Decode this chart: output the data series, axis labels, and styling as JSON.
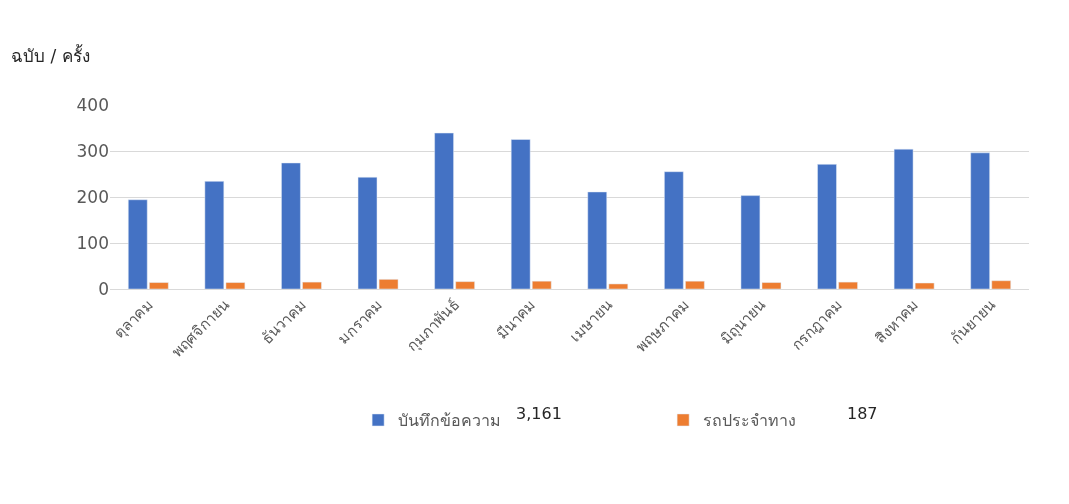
{
  "chart_data": {
    "type": "bar",
    "ylabel": "ฉบับ / ครั้ง",
    "categories": [
      "ตุลาคม",
      "พฤศจิกายน",
      "ธันวาคม",
      "มกราคม",
      "กุมภาพันธ์",
      "มีนาคม",
      "เมษายน",
      "พฤษภาคม",
      "มิถุนายน",
      "กรกฎาคม",
      "สิงหาคม",
      "กันยายน"
    ],
    "series": [
      {
        "name": "บันทึกข้อความ",
        "color": "#4472c4",
        "values": [
          194,
          234,
          274,
          243,
          339,
          325,
          211,
          255,
          203,
          271,
          304,
          296
        ]
      },
      {
        "name": "รถประจำทาง",
        "color": "#ed7d31",
        "values": [
          14,
          14,
          15,
          21,
          16,
          17,
          11,
          17,
          14,
          15,
          13,
          18
        ]
      }
    ],
    "annotations": [
      "3,161",
      "187"
    ],
    "ylim": [
      0,
      400
    ],
    "yticks": [
      0,
      100,
      200,
      300,
      400
    ],
    "grid": "y",
    "legend": "bottom"
  }
}
